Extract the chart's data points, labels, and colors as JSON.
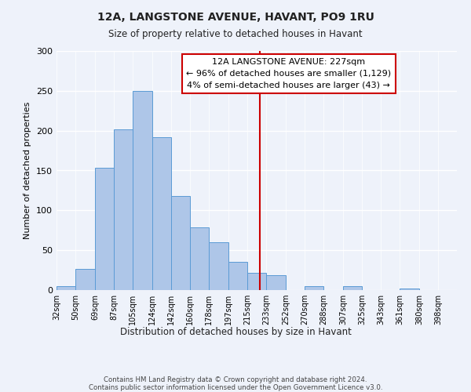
{
  "title": "12A, LANGSTONE AVENUE, HAVANT, PO9 1RU",
  "subtitle": "Size of property relative to detached houses in Havant",
  "xlabel": "Distribution of detached houses by size in Havant",
  "ylabel": "Number of detached properties",
  "bin_labels": [
    "32sqm",
    "50sqm",
    "69sqm",
    "87sqm",
    "105sqm",
    "124sqm",
    "142sqm",
    "160sqm",
    "178sqm",
    "197sqm",
    "215sqm",
    "233sqm",
    "252sqm",
    "270sqm",
    "288sqm",
    "307sqm",
    "325sqm",
    "343sqm",
    "361sqm",
    "380sqm",
    "398sqm"
  ],
  "bar_heights": [
    5,
    27,
    153,
    202,
    250,
    192,
    118,
    79,
    60,
    35,
    22,
    19,
    0,
    5,
    0,
    5,
    0,
    0,
    2,
    0,
    0
  ],
  "bar_color": "#aec6e8",
  "bar_edge_color": "#5b9bd5",
  "property_line_x": 227,
  "bin_edges": [
    32,
    50,
    69,
    87,
    105,
    124,
    142,
    160,
    178,
    197,
    215,
    233,
    252,
    270,
    288,
    307,
    325,
    343,
    361,
    380,
    398
  ],
  "annotation_title": "12A LANGSTONE AVENUE: 227sqm",
  "annotation_line1": "← 96% of detached houses are smaller (1,129)",
  "annotation_line2": "4% of semi-detached houses are larger (43) →",
  "annotation_box_color": "#ffffff",
  "annotation_box_edge": "#cc0000",
  "vline_color": "#cc0000",
  "ylim": [
    0,
    300
  ],
  "yticks": [
    0,
    50,
    100,
    150,
    200,
    250,
    300
  ],
  "footer1": "Contains HM Land Registry data © Crown copyright and database right 2024.",
  "footer2": "Contains public sector information licensed under the Open Government Licence v3.0.",
  "bg_color": "#eef2fa"
}
